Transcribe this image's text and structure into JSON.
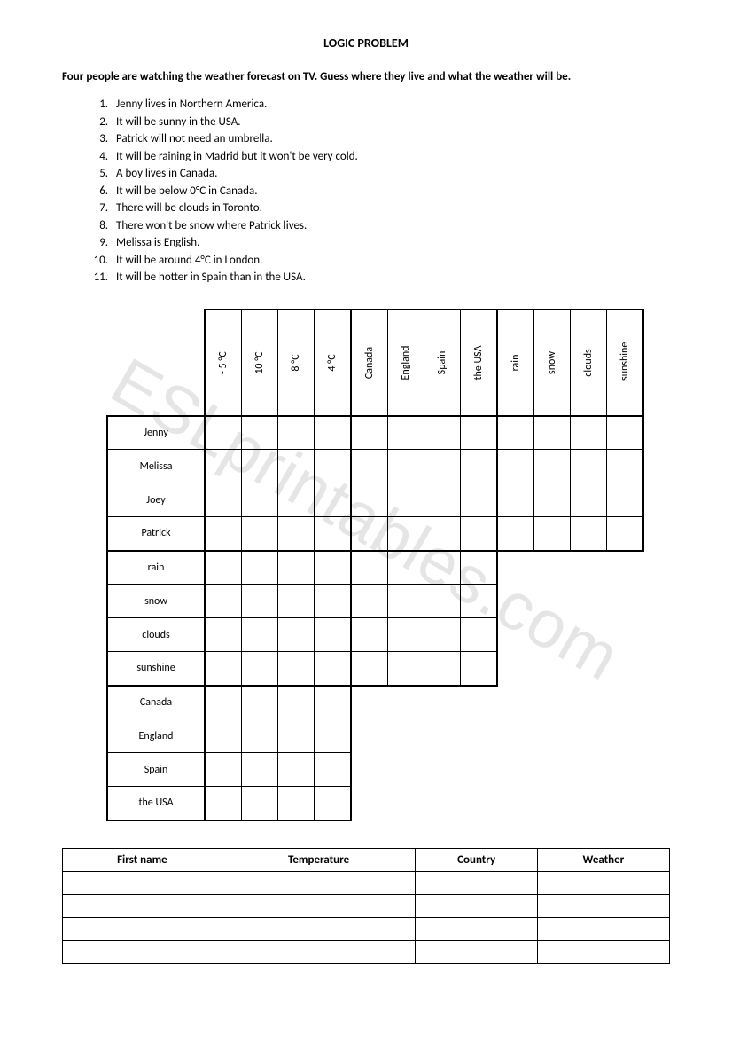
{
  "title": "LOGIC PROBLEM",
  "intro": "Four people are watching the weather forecast on TV. Guess where they live and what the weather will be.",
  "clues": [
    "Jenny lives in Northern America.",
    "It will be sunny in the USA.",
    "Patrick will not need an umbrella.",
    "It will be raining in Madrid but it won't be very cold.",
    "A boy lives in Canada.",
    "It will be below 0°C in Canada.",
    "There will be clouds in Toronto.",
    "There won't be snow where Patrick lives.",
    "Melissa is English.",
    "It will be around 4°C in London.",
    "It will be hotter in Spain than in the USA."
  ],
  "watermark": "ESLprintables.com",
  "grid": {
    "col_groups": {
      "temperature": [
        "- 5 °C",
        "10 °C",
        "8 °C",
        "4 °C"
      ],
      "country": [
        "Canada",
        "England",
        "Spain",
        "the USA"
      ],
      "weather": [
        "rain",
        "snow",
        "clouds",
        "sunshine"
      ]
    },
    "row_groups": {
      "people": [
        "Jenny",
        "Melissa",
        "Joey",
        "Patrick"
      ],
      "weather": [
        "rain",
        "snow",
        "clouds",
        "sunshine"
      ],
      "country": [
        "Canada",
        "England",
        "Spain",
        "the USA"
      ]
    }
  },
  "answer_table": {
    "headers": [
      "First name",
      "Temperature",
      "Country",
      "Weather"
    ],
    "rows": 4
  },
  "colors": {
    "text": "#000000",
    "background": "#ffffff",
    "watermark": "rgba(0,0,0,0.10)"
  }
}
